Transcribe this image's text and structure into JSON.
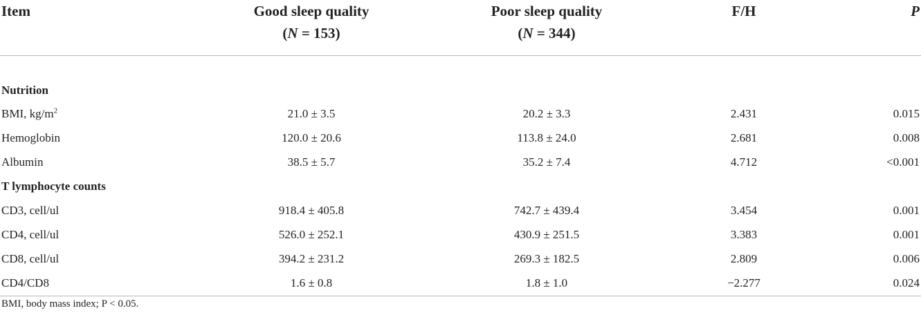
{
  "header": {
    "item": "Item",
    "good_title": "Good sleep quality",
    "good_n_label": "N",
    "good_n_value": "= 153",
    "poor_title": "Poor sleep quality",
    "poor_n_label": "N",
    "poor_n_value": "= 344",
    "fh": "F/H",
    "p": "P"
  },
  "sections": {
    "nutrition": "Nutrition",
    "tlymph": "T lymphocyte counts"
  },
  "rows": [
    {
      "item": "BMI, kg/m",
      "sup": "2",
      "good": "21.0 ± 3.5",
      "poor": "20.2 ± 3.3",
      "fh": "2.431",
      "p": "0.015"
    },
    {
      "item": "Hemoglobin",
      "good": "120.0 ± 20.6",
      "poor": "113.8 ± 24.0",
      "fh": "2.681",
      "p": "0.008"
    },
    {
      "item": "Albumin",
      "good": "38.5 ± 5.7",
      "poor": "35.2 ± 7.4",
      "fh": "4.712",
      "p": "<0.001"
    },
    {
      "item": "CD3, cell/ul",
      "good": "918.4 ± 405.8",
      "poor": "742.7 ± 439.4",
      "fh": "3.454",
      "p": "0.001"
    },
    {
      "item": "CD4, cell/ul",
      "good": "526.0 ± 252.1",
      "poor": "430.9 ± 251.5",
      "fh": "3.383",
      "p": "0.001"
    },
    {
      "item": "CD8, cell/ul",
      "good": "394.2 ± 231.2",
      "poor": "269.3 ± 182.5",
      "fh": "2.809",
      "p": "0.006"
    },
    {
      "item": "CD4/CD8",
      "good": "1.6 ± 0.8",
      "poor": "1.8 ± 1.0",
      "fh": "−2.277",
      "p": "0.024"
    }
  ],
  "footnote": "BMI, body mass index; P < 0.05."
}
